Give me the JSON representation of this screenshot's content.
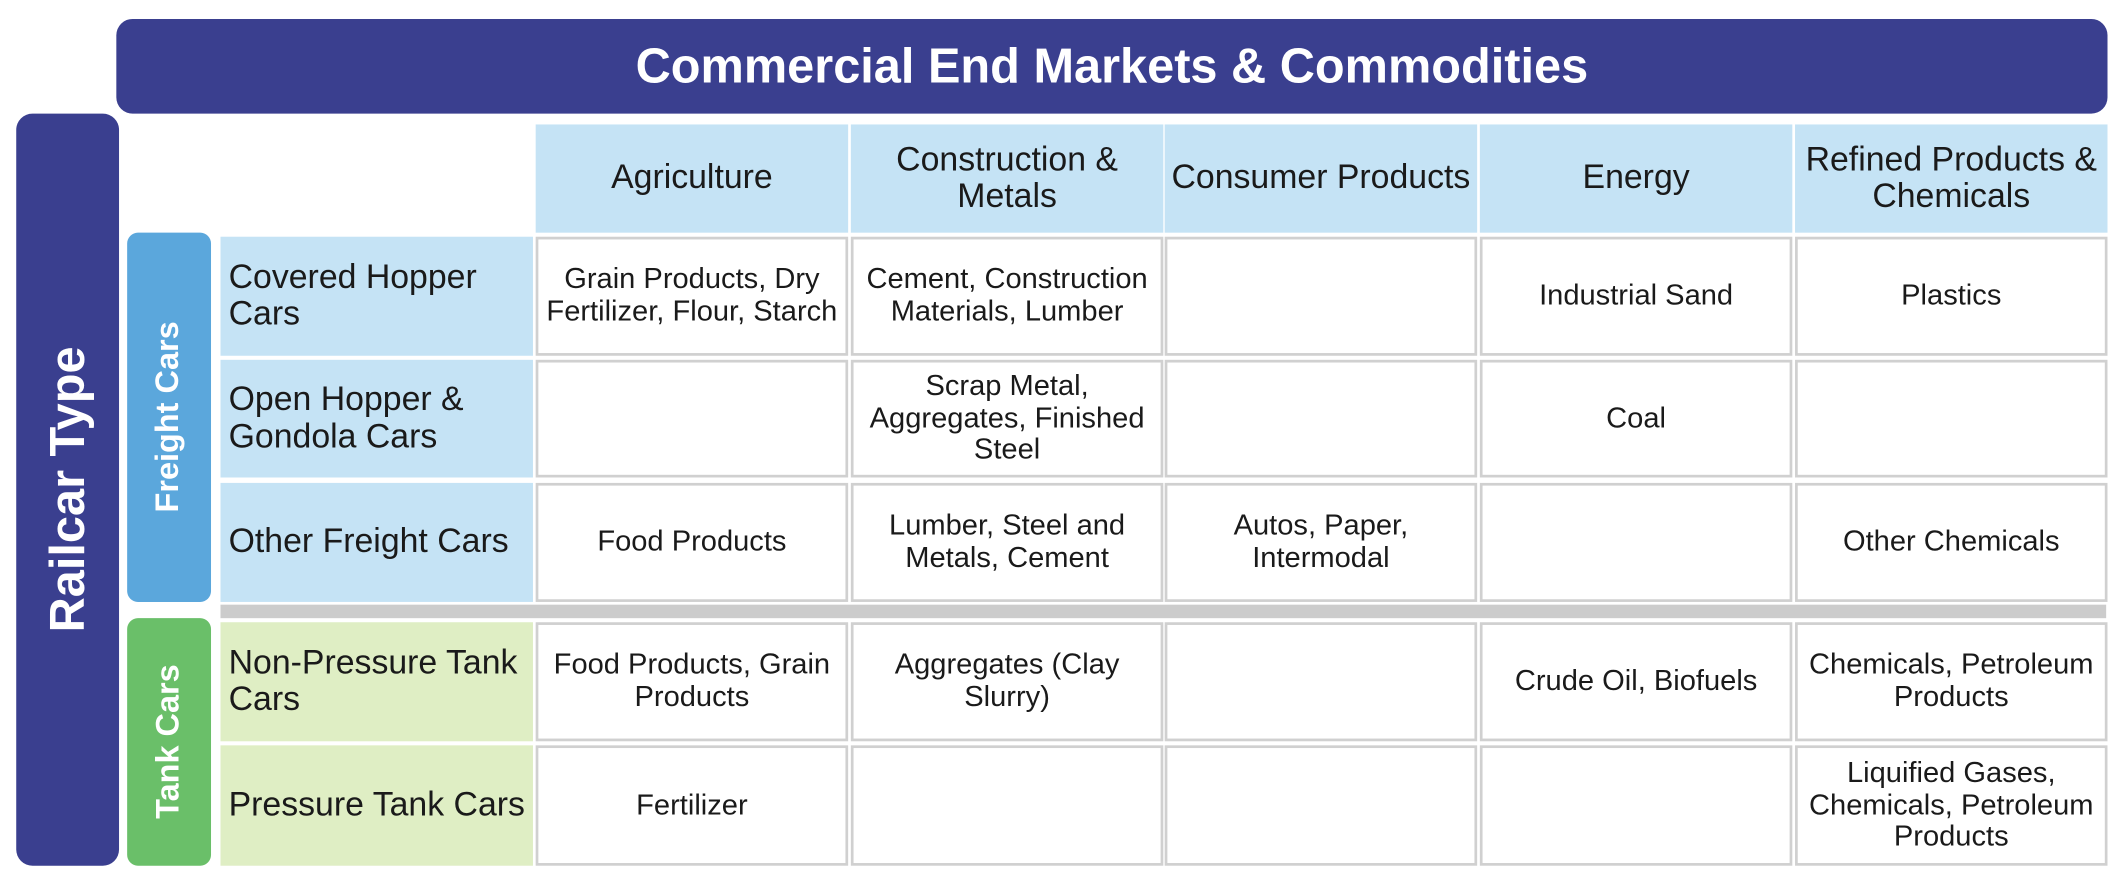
{
  "header": {
    "title": "Commercial End Markets & Commodities"
  },
  "side_label": "Railcar Type",
  "columns": [
    "Agriculture",
    "Construction & Metals",
    "Consumer Products",
    "Energy",
    "Refined Products & Chemicals"
  ],
  "groups": [
    {
      "label": "Freight Cars",
      "rows": [
        {
          "label": "Covered Hopper Cars",
          "cells": [
            "Grain Products, Dry Fertilizer, Flour, Starch",
            "Cement, Construction Materials, Lumber",
            null,
            "Industrial Sand",
            "Plastics"
          ]
        },
        {
          "label": "Open Hopper & Gondola Cars",
          "cells": [
            null,
            "Scrap Metal, Aggregates, Finished Steel",
            null,
            "Coal",
            null
          ]
        },
        {
          "label": "Other Freight Cars",
          "cells": [
            "Food Products",
            "Lumber, Steel and Metals, Cement",
            "Autos, Paper, Intermodal",
            null,
            "Other Chemicals"
          ]
        }
      ]
    },
    {
      "label": "Tank Cars",
      "rows": [
        {
          "label": "Non-Pressure Tank Cars",
          "cells": [
            "Food Products, Grain Products",
            "Aggregates (Clay Slurry)",
            null,
            "Crude Oil, Biofuels",
            "Chemicals, Petroleum Products"
          ]
        },
        {
          "label": "Pressure Tank Cars",
          "cells": [
            "Fertilizer",
            null,
            null,
            null,
            "Liquified Gases, Chemicals, Petroleum Products"
          ]
        }
      ]
    }
  ]
}
